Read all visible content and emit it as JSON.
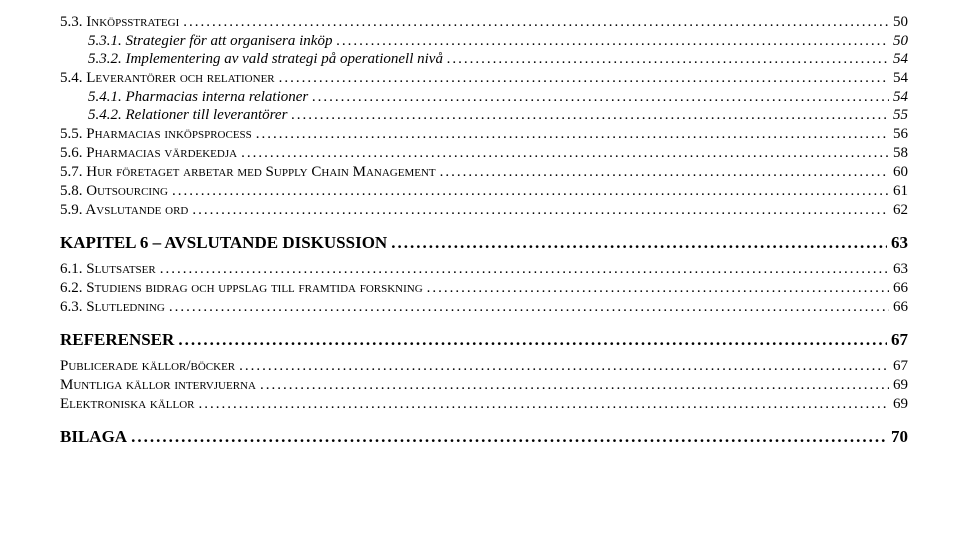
{
  "entries": [
    {
      "cls": "lvl-a",
      "label": "5.3. Inköpsstrategi",
      "page": "50"
    },
    {
      "cls": "lvl-b",
      "label": "5.3.1. Strategier för att organisera inköp",
      "page": "50"
    },
    {
      "cls": "lvl-b",
      "label": "5.3.2. Implementering av vald strategi på operationell nivå",
      "page": "54"
    },
    {
      "cls": "lvl-a",
      "label": "5.4. Leverantörer och relationer",
      "page": "54"
    },
    {
      "cls": "lvl-b",
      "label": "5.4.1. Pharmacias interna relationer",
      "page": "54"
    },
    {
      "cls": "lvl-b",
      "label": "5.4.2. Relationer till leverantörer",
      "page": "55"
    },
    {
      "cls": "lvl-a",
      "label": "5.5. Pharmacias inköpsprocess",
      "page": "56"
    },
    {
      "cls": "lvl-a",
      "label": "5.6. Pharmacias värdekedja",
      "page": "58"
    },
    {
      "cls": "lvl-a",
      "label": "5.7. Hur företaget arbetar med Supply Chain Management",
      "page": "60"
    },
    {
      "cls": "lvl-a",
      "label": "5.8. Outsourcing",
      "page": "61"
    },
    {
      "cls": "lvl-a",
      "label": "5.9. Avslutande ord",
      "page": "62"
    },
    {
      "cls": "lvl-chap",
      "label": "KAPITEL 6 – AVSLUTANDE DISKUSSION",
      "page": "63"
    },
    {
      "cls": "lvl-a",
      "label": "6.1. Slutsatser",
      "page": "63"
    },
    {
      "cls": "lvl-a",
      "label": "6.2. Studiens bidrag och uppslag till framtida forskning",
      "page": "66"
    },
    {
      "cls": "lvl-a",
      "label": "6.3. Slutledning",
      "page": "66"
    },
    {
      "cls": "lvl-ref",
      "label": "REFERENSER",
      "page": "67"
    },
    {
      "cls": "lvl-c",
      "label": "Publicerade källor/böcker",
      "page": "67"
    },
    {
      "cls": "lvl-c",
      "label": "Muntliga källor intervjuerna",
      "page": "69"
    },
    {
      "cls": "lvl-c",
      "label": "Elektroniska källor",
      "page": "69"
    },
    {
      "cls": "lvl-bilaga",
      "label": "BILAGA",
      "page": "70"
    }
  ]
}
